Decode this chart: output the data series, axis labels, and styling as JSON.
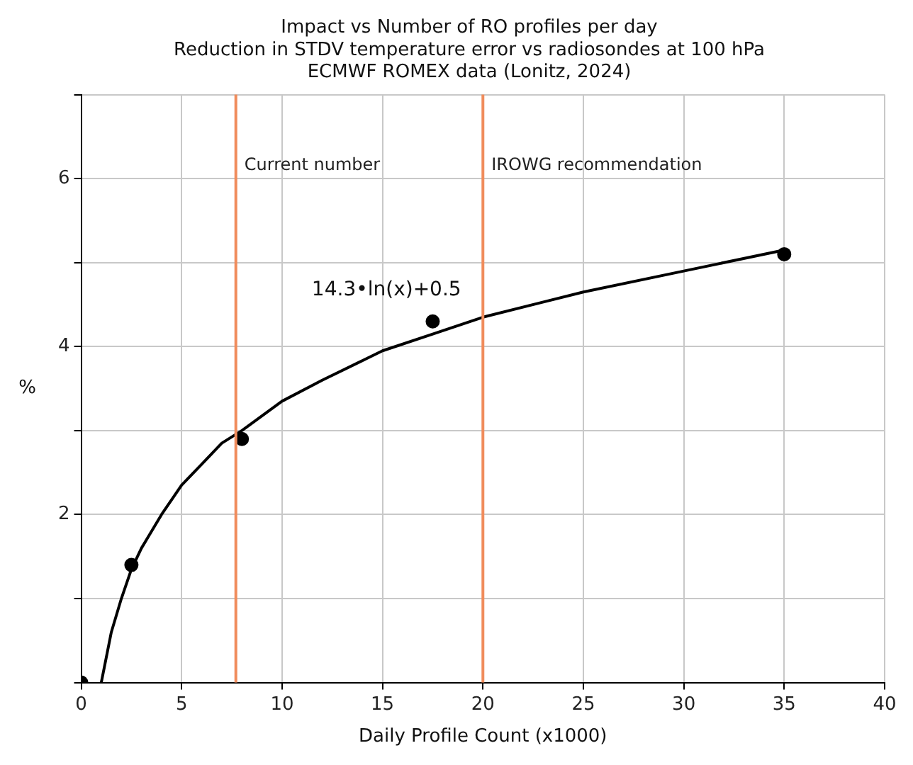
{
  "chart_data": {
    "type": "scatter",
    "title": "Impact vs Number of RO profiles per day",
    "subtitle": "Reduction in STDV temperature error vs radiosondes at 100 hPa\nECMWF ROMEX data (Lonitz, 2024)",
    "xlabel": "Daily Profile Count (x1000)",
    "ylabel": "%",
    "series": [
      {
        "type": "scatter",
        "marker": "circle",
        "color": "#000000",
        "x": [
          0,
          2.5,
          8,
          17.5,
          35
        ],
        "values": [
          0,
          1.4,
          2.9,
          4.3,
          5.1
        ]
      },
      {
        "type": "line",
        "marker": "none",
        "line_style": "solid",
        "color": "#000000",
        "x": [
          1,
          1.5,
          2,
          2.5,
          3,
          4,
          5,
          6,
          7,
          8,
          10,
          12,
          15,
          17.5,
          20,
          25,
          30,
          35
        ],
        "values": [
          0,
          0.6,
          1.0,
          1.35,
          1.6,
          2.0,
          2.35,
          2.6,
          2.85,
          3.0,
          3.35,
          3.6,
          3.95,
          4.15,
          4.35,
          4.65,
          4.9,
          5.15
        ]
      }
    ],
    "ref_lines": [
      {
        "axis": "x",
        "value": 7.7,
        "label": "Current number",
        "color": "#f08c5c"
      },
      {
        "axis": "x",
        "value": 20,
        "label": "IROWG recommendation",
        "color": "#f08c5c"
      }
    ],
    "annotations": [
      "14.3•ln(x)+0.5"
    ],
    "xlim": [
      0,
      40
    ],
    "xticks": [
      0,
      5,
      10,
      15,
      20,
      25,
      30,
      35,
      40
    ],
    "ylim": [
      0,
      7
    ],
    "yticks": [
      {
        "value": 0,
        "label": null
      },
      {
        "value": 1,
        "label": null
      },
      2,
      {
        "value": 3,
        "label": null
      },
      4,
      {
        "value": 5,
        "label": null
      },
      6,
      {
        "value": 7,
        "label": null
      }
    ],
    "grid": true,
    "legend": false
  }
}
